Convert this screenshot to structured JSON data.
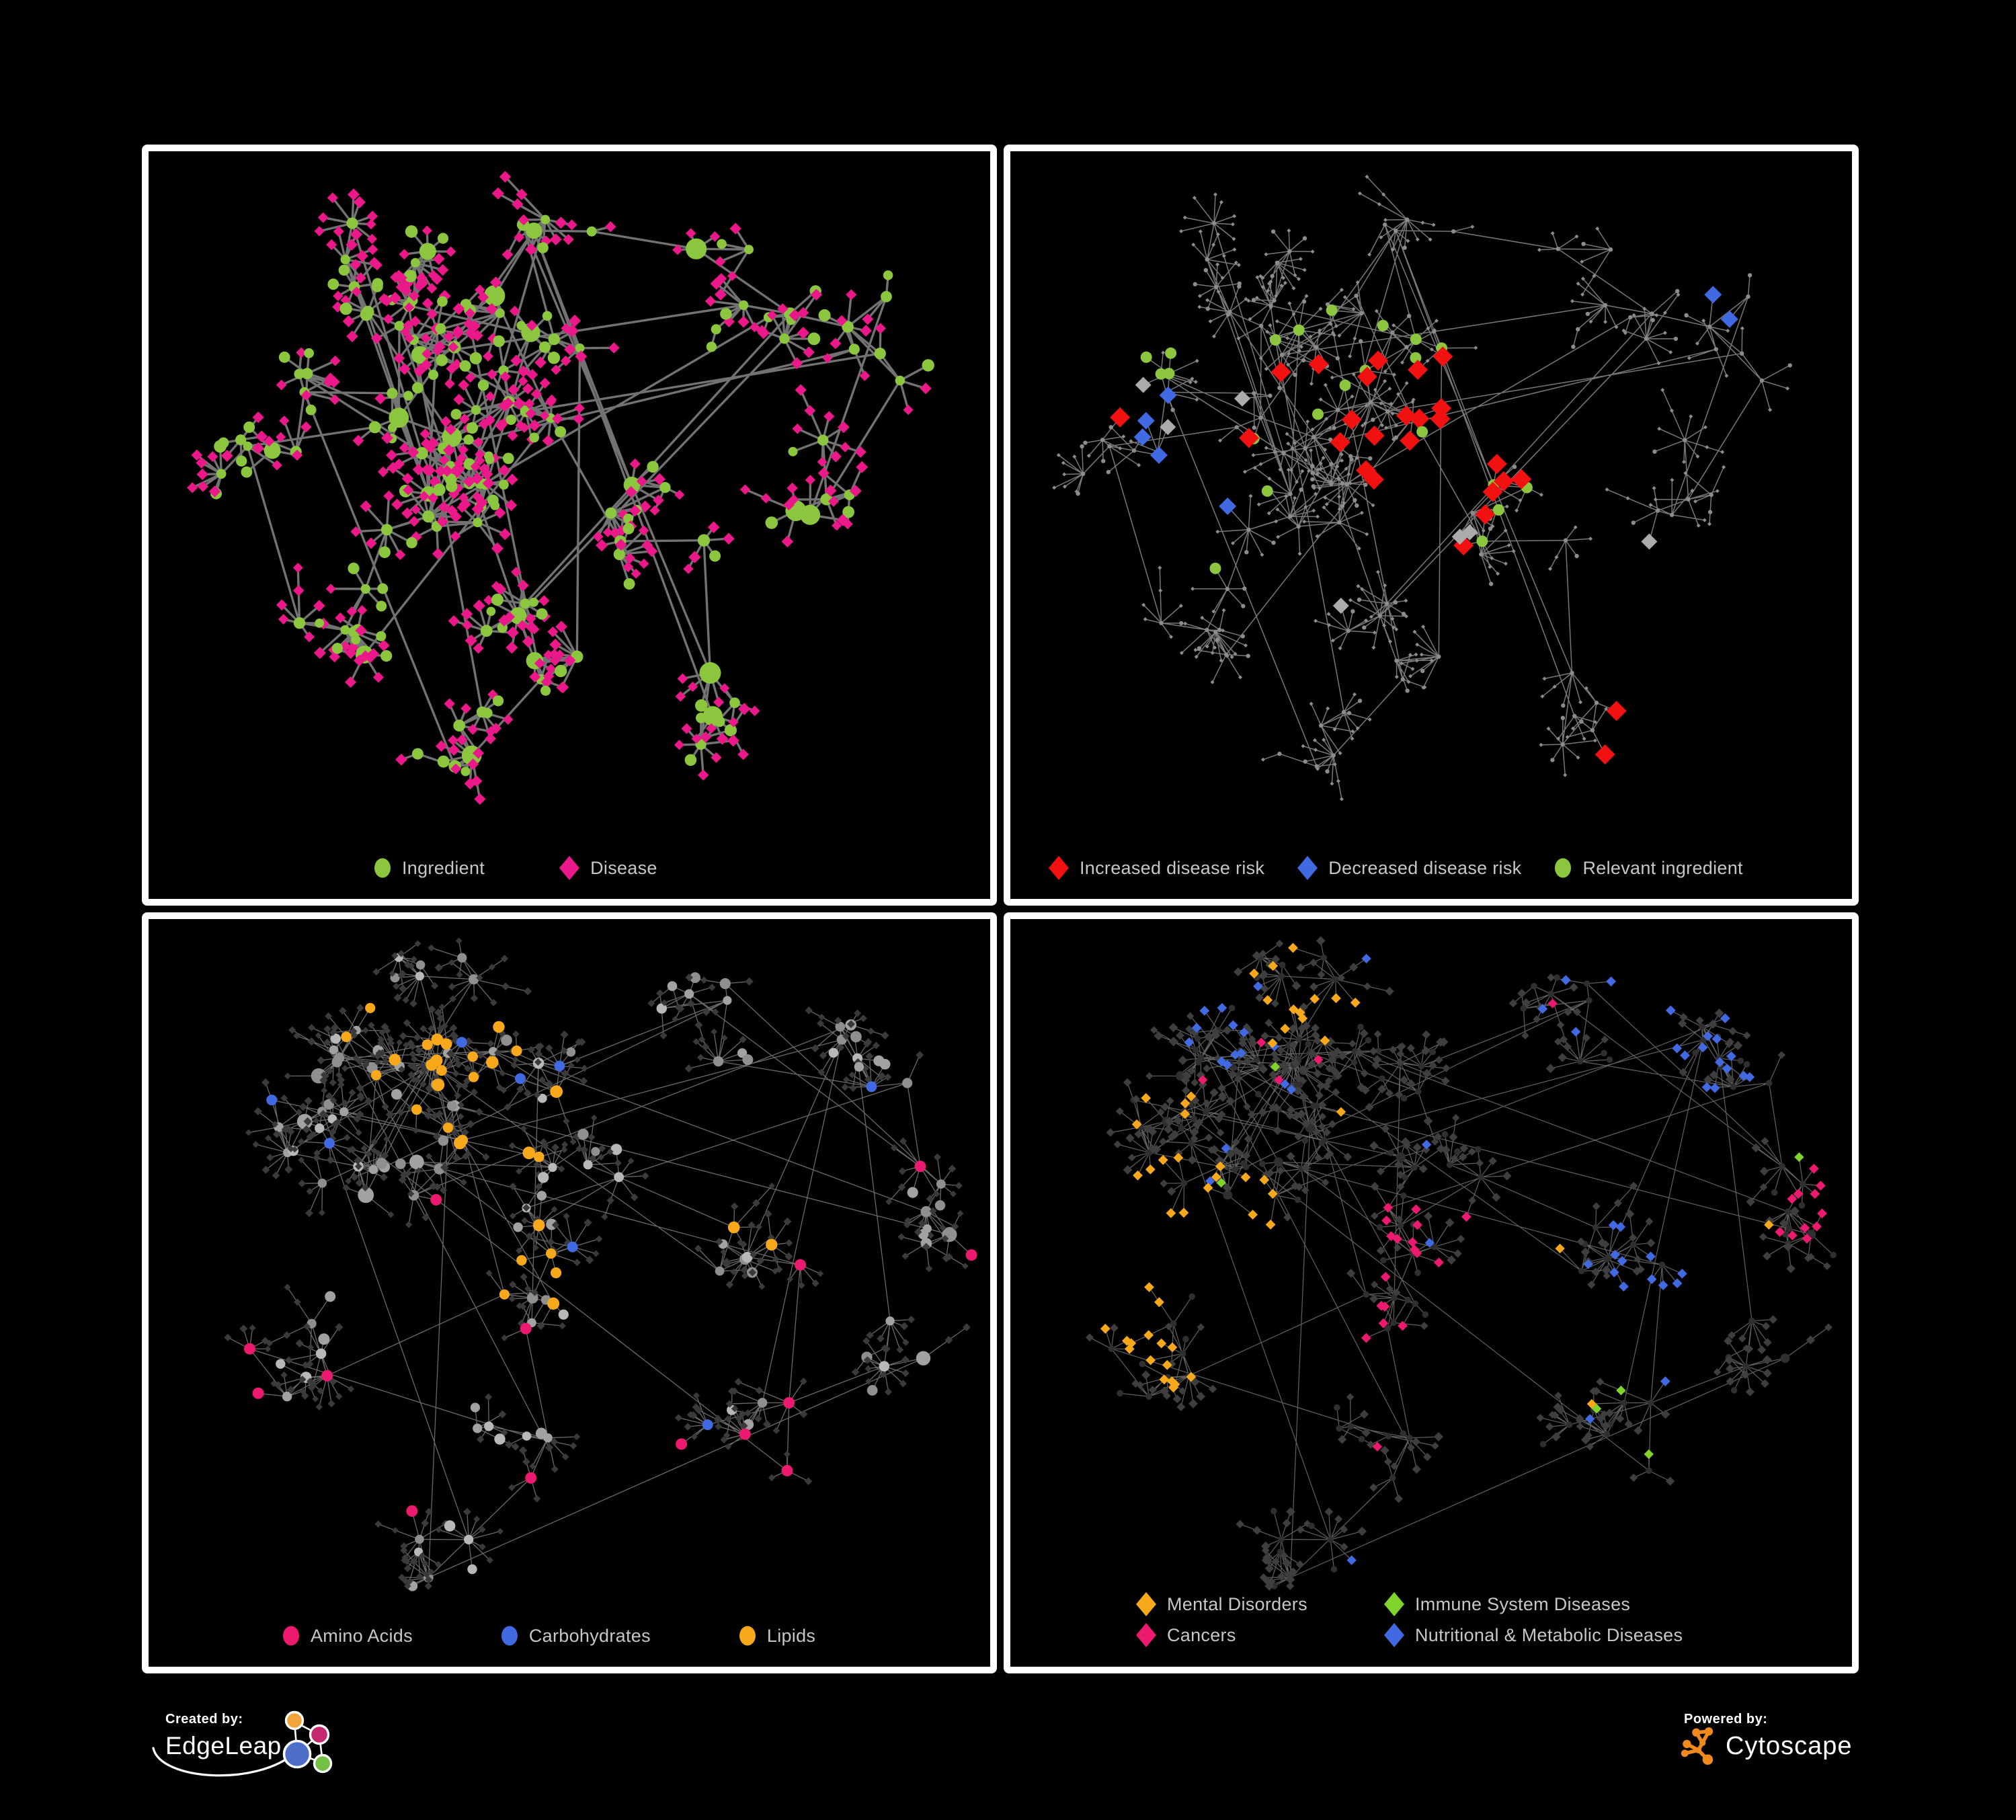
{
  "title": "Ingredient–disease network figure, four panels",
  "background": "#000000",
  "panel_border_color": "#FFFFFF",
  "legend_text_color": "#C7C7C7",
  "colors": {
    "green": "#8CC63F",
    "magenta": "#EA1889",
    "red": "#F21111",
    "blue": "#4169E1",
    "gray_highlight": "#ABABAB",
    "orange": "#F7A81B",
    "pink": "#EC1A6E",
    "lime": "#7FD32A",
    "node_gray": "#9E9E9E",
    "dim_diamond": "#3A3A3A",
    "dim_circle": "#2F2F2F",
    "tiny_gray": "#8C8C8C",
    "edge_bold": "#787878",
    "edge_thin": "#858585",
    "edge_light": "#A2A2A2"
  },
  "panels": [
    {
      "name": "ingredient-disease-network",
      "legend": [
        {
          "shape": "circle",
          "color_key": "green",
          "label": "Ingredient"
        },
        {
          "shape": "diamond",
          "color_key": "magenta",
          "label": "Disease"
        }
      ]
    },
    {
      "name": "disease-risk-network",
      "legend": [
        {
          "shape": "diamond",
          "color_key": "red",
          "label": "Increased disease risk"
        },
        {
          "shape": "diamond",
          "color_key": "blue",
          "label": "Decreased disease risk"
        },
        {
          "shape": "circle",
          "color_key": "green",
          "label": "Relevant ingredient"
        }
      ]
    },
    {
      "name": "nutrient-class-network",
      "legend": [
        {
          "shape": "circle",
          "color_key": "pink",
          "label": "Amino Acids"
        },
        {
          "shape": "circle",
          "color_key": "blue",
          "label": "Carbohydrates"
        },
        {
          "shape": "circle",
          "color_key": "orange",
          "label": "Lipids"
        }
      ]
    },
    {
      "name": "disease-class-network",
      "legend": [
        {
          "shape": "diamond",
          "color_key": "orange",
          "label": "Mental Disorders"
        },
        {
          "shape": "diamond",
          "color_key": "lime",
          "label": "Immune System Diseases"
        },
        {
          "shape": "diamond",
          "color_key": "pink",
          "label": "Cancers"
        },
        {
          "shape": "diamond",
          "color_key": "blue",
          "label": "Nutritional & Metabolic Diseases"
        }
      ]
    }
  ],
  "footer": {
    "created_by_label": "Created by:",
    "created_by_name": "EdgeLeap",
    "powered_by_label": "Powered by:",
    "powered_by_name": "Cytoscape",
    "edgeleap_logo_colors": {
      "orange": "#F2A33C",
      "pink": "#C42A6F",
      "blue": "#4D6FC9",
      "green": "#74C044"
    },
    "cytoscape_logo_color": "#EF8A1D"
  }
}
